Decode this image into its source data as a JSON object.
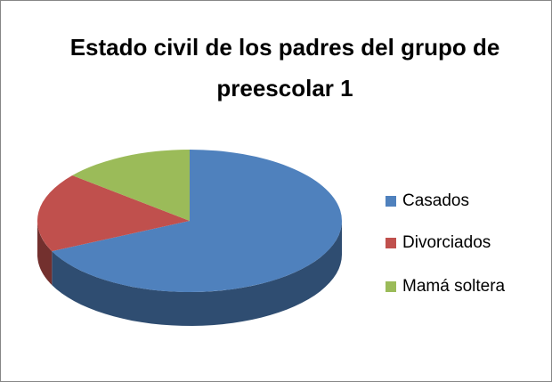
{
  "chart_data": {
    "type": "pie",
    "title": "Estado civil de los padres del grupo de preescolar 1",
    "categories": [
      "Casados",
      "Divorciados",
      "Mamá soltera"
    ],
    "values": [
      68,
      18,
      14
    ],
    "colors": [
      "#4f81bd",
      "#c0504d",
      "#9bbb59"
    ],
    "legend": "right"
  }
}
